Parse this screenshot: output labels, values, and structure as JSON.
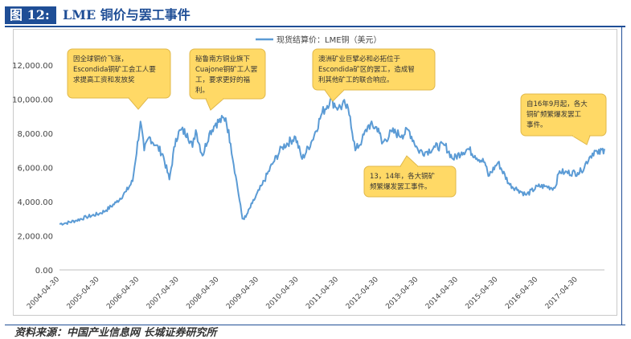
{
  "header": {
    "figure_no": "图 12:",
    "title": "LME 铜价与罢工事件"
  },
  "source": "资料来源：中国产业信息网 长城证券研究所",
  "colors": {
    "line": "#5b9bd5",
    "callout_fill": "#ffd966",
    "callout_stroke": "#e0b84a",
    "header": "#1f4e96"
  },
  "chart_data": {
    "type": "line",
    "legend": {
      "label": "现货结算价：LME铜（美元）",
      "position": "top"
    },
    "ylim": [
      0,
      13000
    ],
    "yticks": [
      "0.00",
      "2,000.00",
      "4,000.00",
      "6,000.00",
      "8,000.00",
      "10,000.00",
      "12,000.00"
    ],
    "ytick_values": [
      0,
      2000,
      4000,
      6000,
      8000,
      10000,
      12000
    ],
    "xlim": [
      "2004-04-30",
      "2017-12-31"
    ],
    "xticks": [
      "2004-04-30",
      "2005-04-30",
      "2006-04-30",
      "2007-04-30",
      "2008-04-30",
      "2009-04-30",
      "2010-04-30",
      "2011-04-30",
      "2012-04-30",
      "2013-04-30",
      "2014-04-30",
      "2015-04-30",
      "2016-04-30",
      "2017-04-30"
    ],
    "grid": false,
    "series": [
      {
        "name": "现货结算价：LME铜（美元）",
        "points": [
          [
            "2004-04-30",
            2700
          ],
          [
            "2004-07-01",
            2750
          ],
          [
            "2004-10-01",
            2900
          ],
          [
            "2005-01-01",
            3100
          ],
          [
            "2005-04-30",
            3300
          ],
          [
            "2005-07-01",
            3500
          ],
          [
            "2005-10-01",
            3950
          ],
          [
            "2006-01-01",
            4600
          ],
          [
            "2006-03-01",
            5200
          ],
          [
            "2006-05-12",
            8700
          ],
          [
            "2006-06-15",
            7000
          ],
          [
            "2006-08-01",
            7800
          ],
          [
            "2006-10-01",
            7300
          ],
          [
            "2006-12-01",
            6800
          ],
          [
            "2007-02-01",
            5300
          ],
          [
            "2007-04-01",
            7700
          ],
          [
            "2007-05-15",
            8200
          ],
          [
            "2007-07-15",
            8000
          ],
          [
            "2007-09-01",
            7200
          ],
          [
            "2007-10-01",
            8200
          ],
          [
            "2007-12-01",
            6700
          ],
          [
            "2008-02-01",
            8000
          ],
          [
            "2008-04-01",
            8600
          ],
          [
            "2008-07-01",
            8900
          ],
          [
            "2008-08-15",
            7400
          ],
          [
            "2008-10-01",
            5500
          ],
          [
            "2008-12-01",
            3000
          ],
          [
            "2009-01-01",
            3100
          ],
          [
            "2009-03-01",
            3900
          ],
          [
            "2009-06-01",
            5000
          ],
          [
            "2009-09-01",
            6200
          ],
          [
            "2009-12-01",
            7200
          ],
          [
            "2010-04-01",
            7800
          ],
          [
            "2010-06-01",
            6500
          ],
          [
            "2010-09-01",
            7600
          ],
          [
            "2010-12-01",
            9200
          ],
          [
            "2011-02-14",
            10000
          ],
          [
            "2011-04-30",
            9500
          ],
          [
            "2011-07-01",
            9700
          ],
          [
            "2011-08-15",
            9000
          ],
          [
            "2011-10-01",
            7000
          ],
          [
            "2011-12-01",
            7600
          ],
          [
            "2012-02-01",
            8500
          ],
          [
            "2012-04-30",
            8300
          ],
          [
            "2012-06-01",
            7400
          ],
          [
            "2012-09-01",
            8100
          ],
          [
            "2012-12-01",
            7900
          ],
          [
            "2013-02-01",
            8200
          ],
          [
            "2013-04-30",
            7000
          ],
          [
            "2013-07-01",
            6900
          ],
          [
            "2013-10-01",
            7200
          ],
          [
            "2013-12-31",
            7300
          ],
          [
            "2014-03-15",
            6500
          ],
          [
            "2014-06-01",
            6900
          ],
          [
            "2014-08-01",
            7100
          ],
          [
            "2014-10-01",
            6700
          ],
          [
            "2014-12-31",
            6300
          ],
          [
            "2015-02-01",
            5500
          ],
          [
            "2015-05-01",
            6300
          ],
          [
            "2015-08-15",
            5000
          ],
          [
            "2015-11-01",
            4700
          ],
          [
            "2016-01-15",
            4400
          ],
          [
            "2016-04-30",
            4900
          ],
          [
            "2016-07-01",
            4900
          ],
          [
            "2016-10-01",
            4800
          ],
          [
            "2016-11-15",
            5800
          ],
          [
            "2017-01-01",
            5700
          ],
          [
            "2017-04-30",
            5700
          ],
          [
            "2017-06-01",
            5800
          ],
          [
            "2017-08-15",
            6600
          ],
          [
            "2017-10-01",
            7000
          ],
          [
            "2017-11-01",
            6800
          ],
          [
            "2017-12-31",
            7100
          ]
        ]
      }
    ],
    "annotations": [
      {
        "text": [
          "因全球铜价飞涨，",
          "Escondida铜矿工会工人要",
          "求提高工资和发放奖"
        ]
      },
      {
        "text": [
          "秘鲁南方铜业旗下",
          "Cuajone铜矿工人罢",
          "工，要求更好的福",
          "利。"
        ]
      },
      {
        "text": [
          "澳洲矿业巨擘必和必拓位于",
          "Escondida矿区的罢工，造成智",
          "利其他矿工的联合响应。"
        ]
      },
      {
        "text": [
          "13，14年，各大铜矿",
          "频繁爆发罢工事件。"
        ]
      },
      {
        "text": [
          "自16年9月起，各大",
          "铜矿频繁爆发罢工",
          "事件。"
        ]
      }
    ]
  }
}
